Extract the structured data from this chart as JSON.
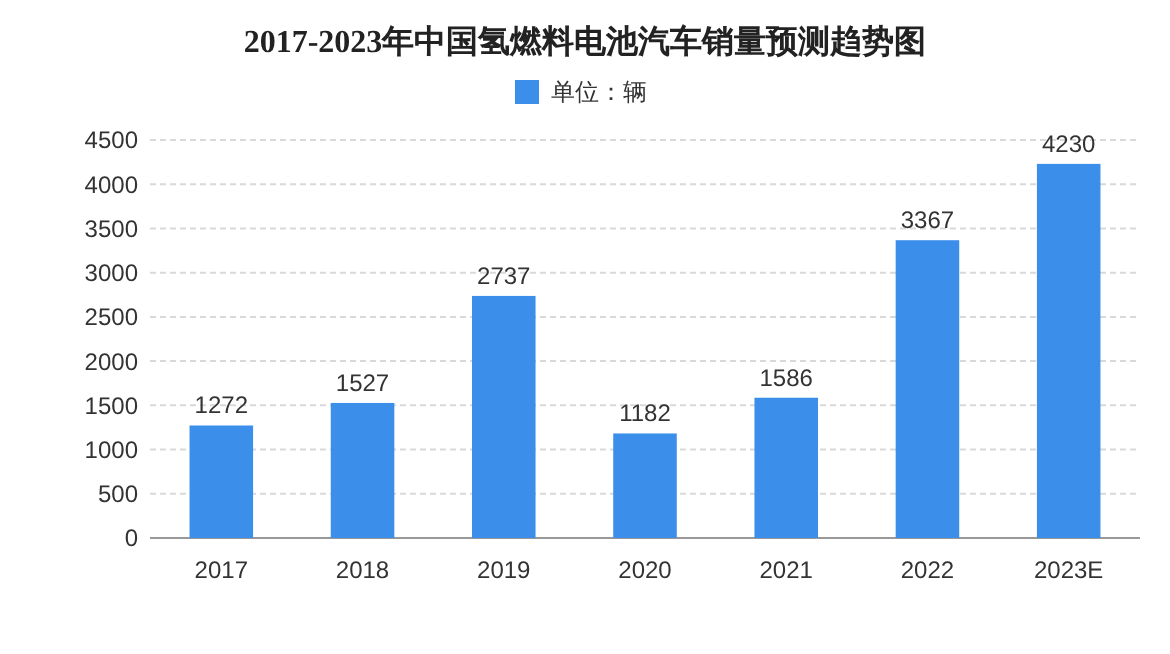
{
  "chart_data": {
    "type": "bar",
    "title": "2017-2023年中国氢燃料电池汽车销量预测趋势图",
    "categories": [
      "2017",
      "2018",
      "2019",
      "2020",
      "2021",
      "2022",
      "2023E"
    ],
    "series": [
      {
        "name": "单位：辆",
        "color": "#3b8fea",
        "values": [
          1272,
          1527,
          2737,
          1182,
          1586,
          3367,
          4230
        ]
      }
    ],
    "ylim": [
      0,
      4500
    ],
    "yticks": [
      0,
      500,
      1000,
      1500,
      2000,
      2500,
      3000,
      3500,
      4000,
      4500
    ],
    "grid": "y",
    "legend": "top",
    "data_labels": true
  }
}
